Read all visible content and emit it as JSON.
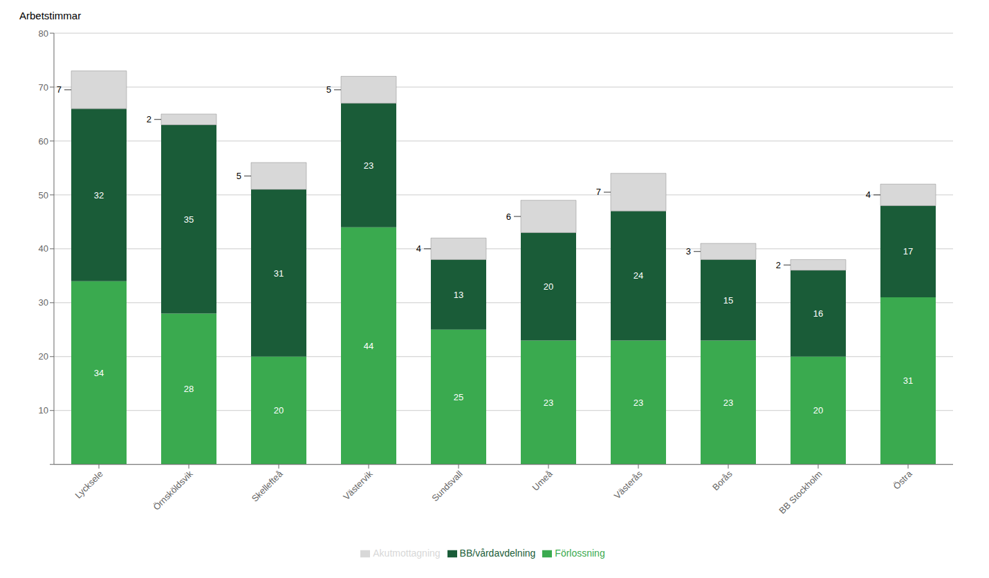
{
  "chart_data": {
    "type": "bar",
    "stacked": true,
    "ylabel": "Arbetstimmar",
    "categories": [
      "Lycksele",
      "Örnsköldsvik",
      "Skellefteå",
      "Västervik",
      "Sundsvall",
      "Umeå",
      "Västerås",
      "Borås",
      "BB Stockholm",
      "Östra"
    ],
    "series": [
      {
        "name": "Förlossning",
        "color": "#3aaa4f",
        "values": [
          34,
          28,
          20,
          44,
          25,
          23,
          23,
          23,
          20,
          31
        ]
      },
      {
        "name": "BB/vårdavdelning",
        "color": "#1a5c38",
        "values": [
          32,
          35,
          31,
          23,
          13,
          20,
          24,
          15,
          16,
          17
        ]
      },
      {
        "name": "Akutmottagning",
        "color": "#d8d8d8",
        "values": [
          7,
          2,
          5,
          5,
          4,
          6,
          7,
          3,
          2,
          4
        ]
      }
    ],
    "ylim": [
      0,
      80
    ],
    "yticks": [
      {
        "value": 0,
        "label": ""
      },
      10,
      20,
      30,
      40,
      50,
      60,
      70,
      80
    ],
    "grid": true,
    "legend": "bottom",
    "data_labels": true
  }
}
